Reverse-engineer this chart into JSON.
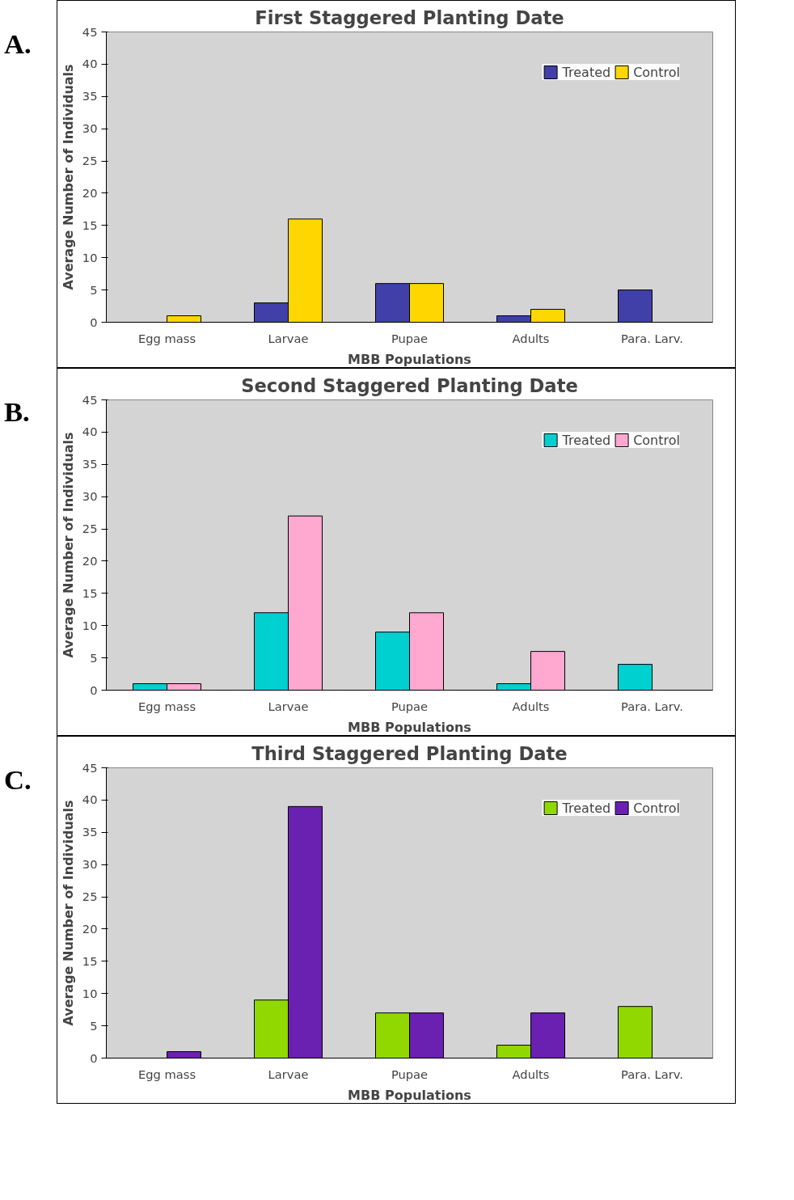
{
  "chart_data": [
    {
      "type": "bar",
      "title": "First Staggered Planting Date",
      "xlabel": "MBB Populations",
      "ylabel": "Average Number of Individuals",
      "annotations": [
        "A."
      ],
      "categories": [
        "Egg mass",
        "Larvae",
        "Pupae",
        "Adults",
        "Para. Larv."
      ],
      "series": [
        {
          "name": "Treated",
          "color": "#4040a8",
          "values": [
            null,
            3,
            6,
            1,
            5
          ]
        },
        {
          "name": "Control",
          "color": "#ffd700",
          "values": [
            1,
            16,
            6,
            2,
            null
          ]
        }
      ],
      "ylim": [
        0,
        45
      ],
      "yticks": [
        0,
        5,
        10,
        15,
        20,
        25,
        30,
        35,
        40,
        45
      ],
      "legend": "top right",
      "grid": false
    },
    {
      "type": "bar",
      "title": "Second Staggered Planting Date",
      "xlabel": "MBB Populations",
      "ylabel": "Average Number of Individuals",
      "annotations": [
        "B."
      ],
      "categories": [
        "Egg mass",
        "Larvae",
        "Pupae",
        "Adults",
        "Para. Larv."
      ],
      "series": [
        {
          "name": "Treated",
          "color": "#00d0d0",
          "values": [
            1,
            12,
            9,
            1,
            4
          ]
        },
        {
          "name": "Control",
          "color": "#ffa8d0",
          "values": [
            1,
            27,
            12,
            6,
            null
          ]
        }
      ],
      "ylim": [
        0,
        45
      ],
      "yticks": [
        0,
        5,
        10,
        15,
        20,
        25,
        30,
        35,
        40,
        45
      ],
      "legend": "top right",
      "grid": false
    },
    {
      "type": "bar",
      "title": "Third Staggered Planting Date",
      "xlabel": "MBB Populations",
      "ylabel": "Average Number of Individuals",
      "annotations": [
        "C."
      ],
      "categories": [
        "Egg mass",
        "Larvae",
        "Pupae",
        "Adults",
        "Para. Larv."
      ],
      "series": [
        {
          "name": "Treated",
          "color": "#90d800",
          "values": [
            null,
            9,
            7,
            2,
            8
          ]
        },
        {
          "name": "Control",
          "color": "#6a20b0",
          "values": [
            1,
            39,
            7,
            7,
            null
          ]
        }
      ],
      "ylim": [
        0,
        45
      ],
      "yticks": [
        0,
        5,
        10,
        15,
        20,
        25,
        30,
        35,
        40,
        45
      ],
      "legend": "top right",
      "grid": false
    }
  ]
}
